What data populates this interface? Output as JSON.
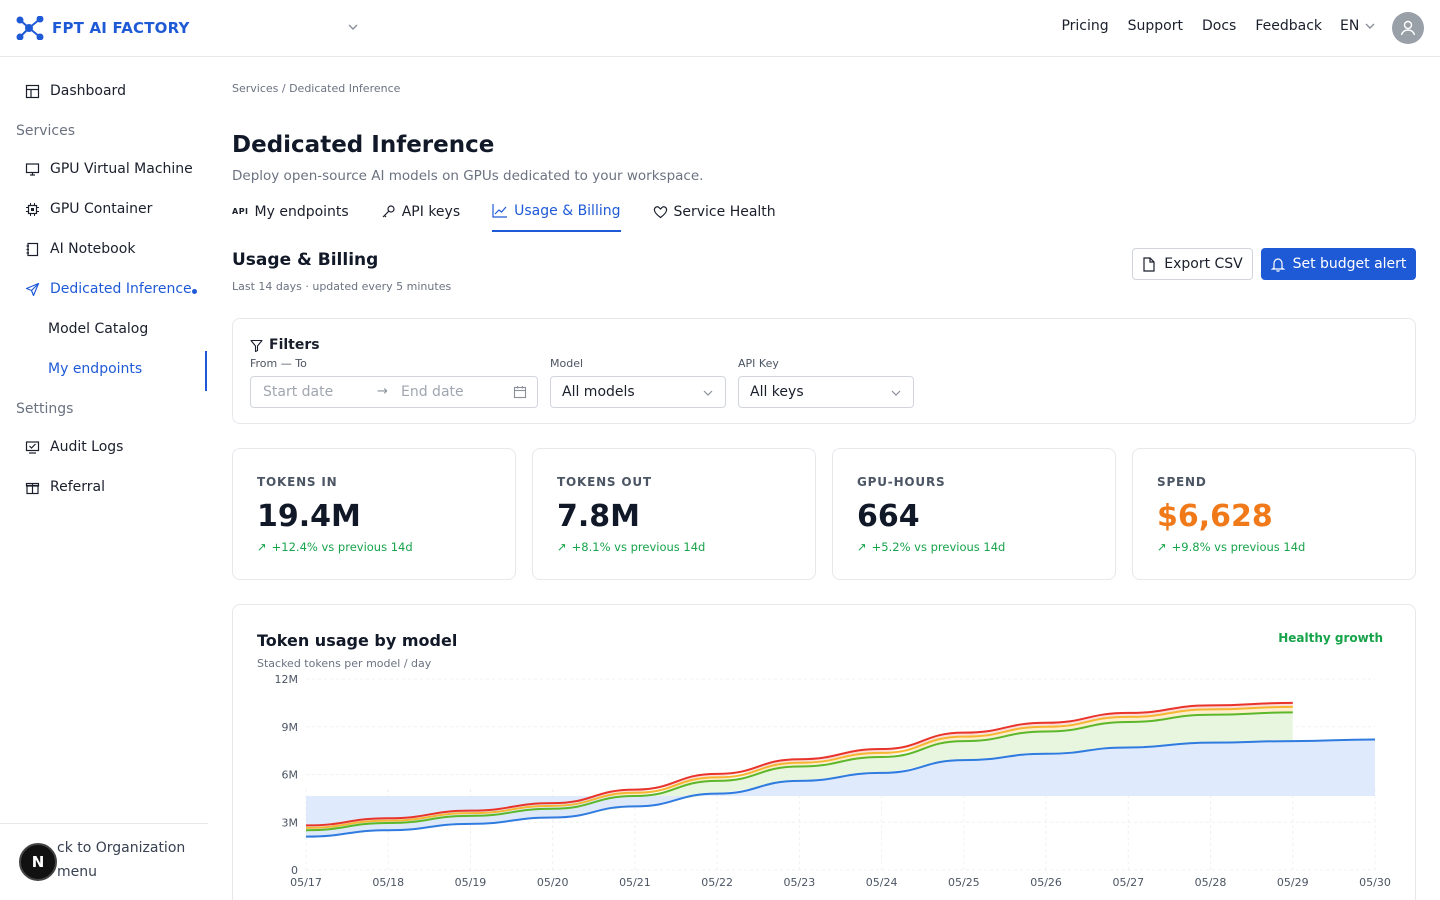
{
  "brand": {
    "name": "FPT AI FACTORY"
  },
  "topnav": {
    "items": [
      "Pricing",
      "Support",
      "Docs",
      "Feedback"
    ],
    "lang": "EN"
  },
  "sidebar": {
    "dashboard": "Dashboard",
    "services_label": "Services",
    "items": [
      "GPU Virtual Machine",
      "GPU Container",
      "AI Notebook",
      "Dedicated Inference"
    ],
    "subitems": [
      "Model Catalog",
      "My endpoints"
    ],
    "settings_label": "Settings",
    "settings_items": [
      "Audit Logs",
      "Referral"
    ],
    "footer": {
      "back": "ck to Organization",
      "menu": "menu"
    },
    "badge": "N"
  },
  "breadcrumb": "Services / Dedicated Inference",
  "page": {
    "title": "Dedicated Inference",
    "subtitle": "Deploy open-source AI models on GPUs dedicated to your workspace."
  },
  "tabs": [
    {
      "label": "My endpoints",
      "icon": "api-icon"
    },
    {
      "label": "API keys",
      "icon": "key-icon"
    },
    {
      "label": "Usage & Billing",
      "icon": "chart-icon",
      "active": true
    },
    {
      "label": "Service Health",
      "icon": "heart-icon"
    }
  ],
  "section": {
    "title": "Usage & Billing",
    "subtitle": "Last 14 days · updated every 5 minutes",
    "export_label": "Export CSV",
    "alert_label": "Set budget alert"
  },
  "filters": {
    "title": "Filters",
    "range_label": "From — To",
    "start_placeholder": "Start date",
    "end_placeholder": "End date",
    "model_label": "Model",
    "model_value": "All models",
    "key_label": "API Key",
    "key_value": "All keys"
  },
  "kpis": [
    {
      "label": "TOKENS IN",
      "value": "19.4M",
      "delta": "+12.4% vs previous 14d",
      "color": "#111827"
    },
    {
      "label": "TOKENS OUT",
      "value": "7.8M",
      "delta": "+8.1% vs previous 14d",
      "color": "#111827"
    },
    {
      "label": "GPU-HOURS",
      "value": "664",
      "delta": "+5.2% vs previous 14d",
      "color": "#111827"
    },
    {
      "label": "SPEND",
      "value": "$6,628",
      "delta": "+9.8% vs previous 14d",
      "color": "#f07a1a"
    }
  ],
  "chart": {
    "title": "Token usage by model",
    "subtitle": "Stacked tokens per model / day",
    "badge": "Healthy growth"
  },
  "chart_data": {
    "type": "area",
    "categories": [
      "05/17",
      "05/18",
      "05/19",
      "05/20",
      "05/21",
      "05/22",
      "05/23",
      "05/24",
      "05/25",
      "05/26",
      "05/27",
      "05/28",
      "05/29",
      "05/30"
    ],
    "y_ticks": [
      "0",
      "3M",
      "6M",
      "9M",
      "12M"
    ],
    "ylim": [
      0,
      12000000
    ],
    "series": [
      {
        "color": "#2f7be0",
        "values": [
          2.1,
          2.5,
          2.9,
          3.3,
          4.0,
          4.8,
          5.6,
          6.1,
          6.9,
          7.3,
          7.7,
          8.0,
          8.1,
          8.2
        ]
      },
      {
        "color": "#5cb82a",
        "values": [
          0.4,
          0.45,
          0.5,
          0.55,
          0.65,
          0.8,
          0.9,
          1.0,
          1.2,
          1.4,
          1.6,
          1.75,
          1.8,
          null
        ]
      },
      {
        "color": "#f5b731",
        "values": [
          0.15,
          0.15,
          0.17,
          0.18,
          0.2,
          0.22,
          0.24,
          0.26,
          0.28,
          0.3,
          0.32,
          0.34,
          0.35,
          null
        ]
      },
      {
        "color": "#e8342a",
        "values": [
          0.15,
          0.15,
          0.16,
          0.17,
          0.2,
          0.22,
          0.22,
          0.24,
          0.25,
          0.25,
          0.25,
          0.25,
          0.25,
          null
        ]
      }
    ]
  }
}
